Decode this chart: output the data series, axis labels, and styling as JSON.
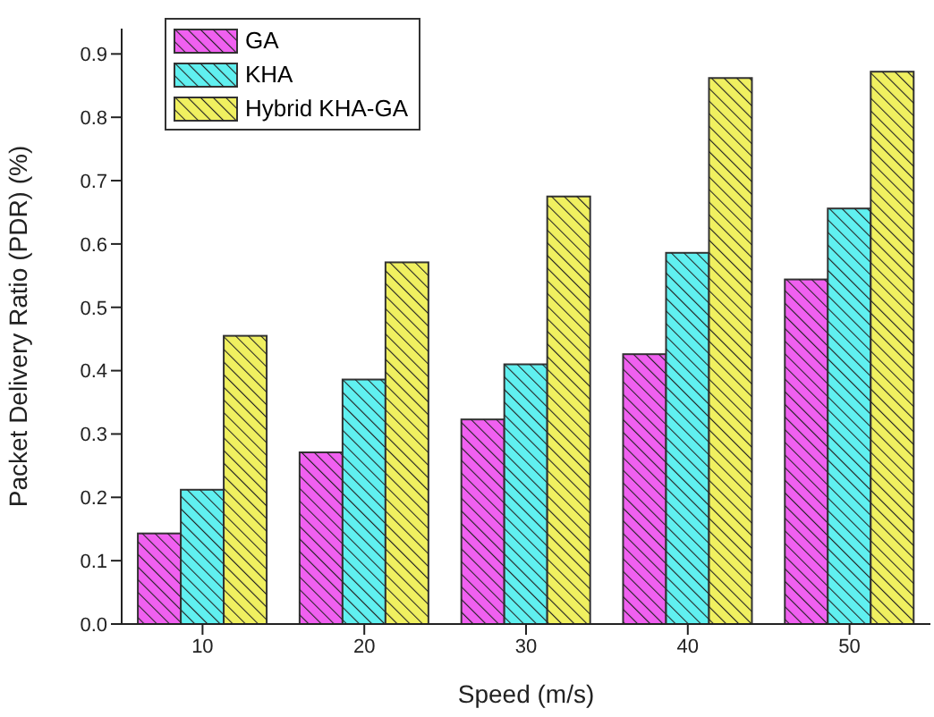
{
  "chart_data": {
    "type": "bar",
    "xlabel": "Speed (m/s)",
    "ylabel": "Packet Delivery Ratio (PDR) (%)",
    "categories": [
      "10",
      "20",
      "30",
      "40",
      "50"
    ],
    "series": [
      {
        "name": "GA",
        "color": "#f060f0",
        "values": [
          0.143,
          0.271,
          0.323,
          0.426,
          0.544
        ]
      },
      {
        "name": "KHA",
        "color": "#60f0f0",
        "values": [
          0.212,
          0.386,
          0.41,
          0.586,
          0.656
        ]
      },
      {
        "name": "Hybrid KHA-GA",
        "color": "#f0f060",
        "values": [
          0.455,
          0.571,
          0.675,
          0.862,
          0.872
        ]
      }
    ],
    "ylim": [
      0,
      0.94
    ],
    "yticks": [
      "0.0",
      0.1,
      0.2,
      0.3,
      0.4,
      0.5,
      0.6,
      0.7,
      0.8,
      0.9
    ],
    "grid": false,
    "legend": "top left"
  }
}
